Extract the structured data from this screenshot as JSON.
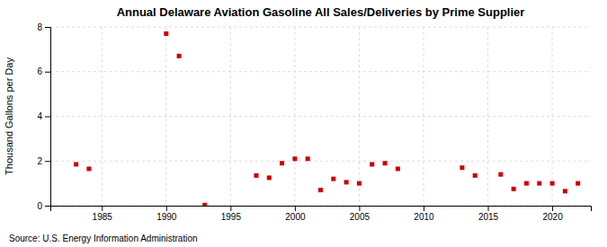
{
  "chart_data": {
    "type": "scatter",
    "title": "Annual Delaware Aviation Gasoline All Sales/Deliveries by Prime Supplier",
    "y_label": "Thousand Gallons per Day",
    "source": "Source: U.S. Energy Information Administration",
    "x": [
      1983,
      1984,
      1990,
      1991,
      1993,
      1997,
      1998,
      1999,
      2000,
      2001,
      2002,
      2003,
      2004,
      2005,
      2006,
      2007,
      2008,
      2013,
      2014,
      2016,
      2017,
      2018,
      2019,
      2020,
      2021,
      2022
    ],
    "values": [
      1.85,
      1.65,
      7.7,
      6.7,
      0.03,
      1.35,
      1.25,
      1.9,
      2.1,
      2.1,
      0.7,
      1.2,
      1.05,
      1.0,
      1.85,
      1.9,
      1.65,
      1.7,
      1.35,
      1.4,
      0.75,
      1.0,
      1.0,
      1.0,
      0.65,
      1.0
    ],
    "color": "#cc0000",
    "marker": "square",
    "xlim": [
      1981,
      2023
    ],
    "ylim": [
      0,
      8
    ],
    "xticks": [
      1985,
      1990,
      1995,
      2000,
      2005,
      2010,
      2015,
      2020
    ],
    "yticks": [
      0,
      2,
      4,
      6,
      8
    ],
    "grid": true
  }
}
